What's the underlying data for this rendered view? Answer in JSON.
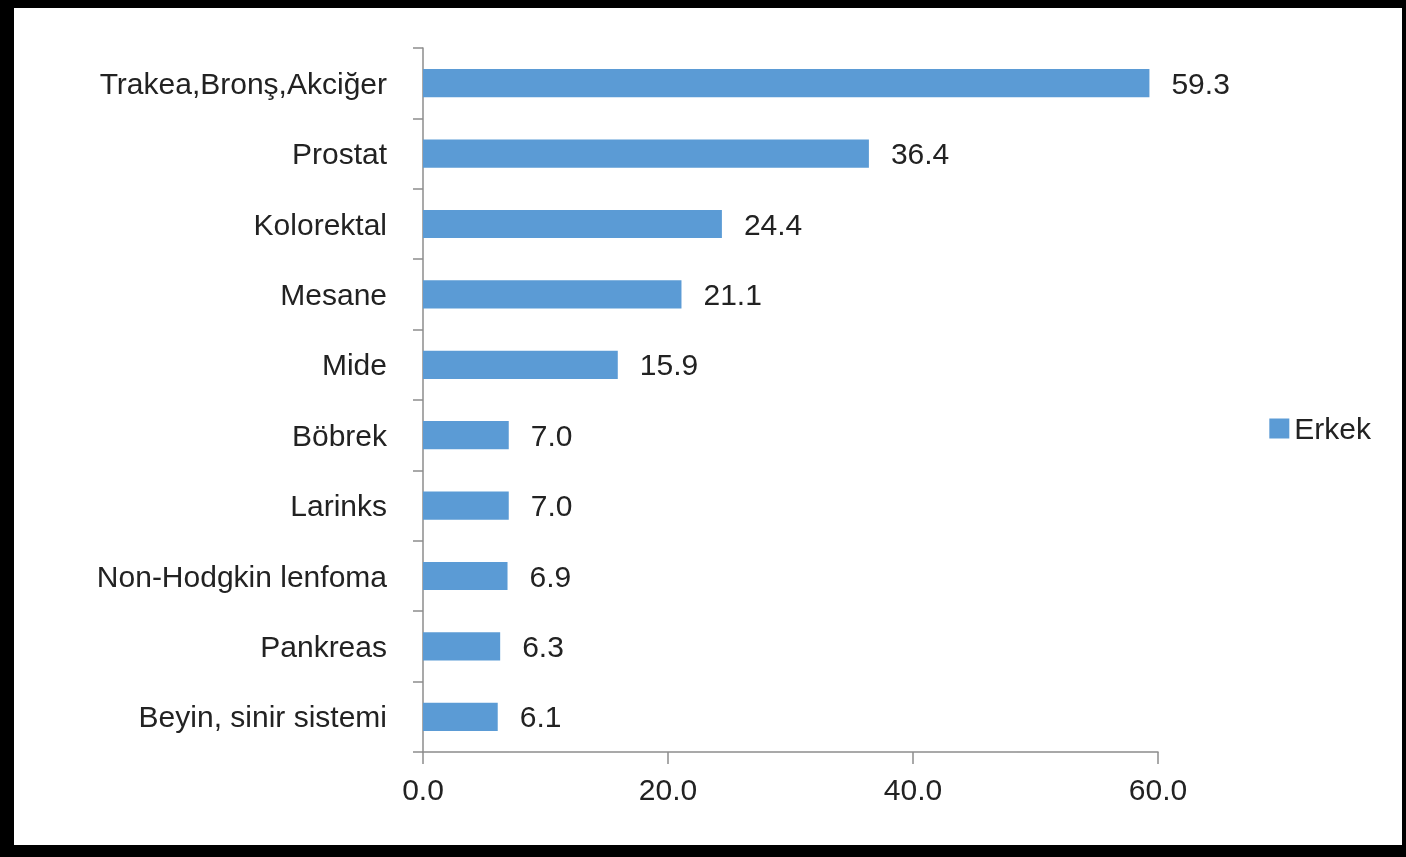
{
  "chart_data": {
    "type": "bar",
    "orientation": "horizontal",
    "categories": [
      "Trakea,Bronş,Akciğer",
      "Prostat",
      "Kolorektal",
      "Mesane",
      "Mide",
      "Böbrek",
      "Larinks",
      "Non-Hodgkin lenfoma",
      "Pankreas",
      "Beyin, sinir sistemi"
    ],
    "series": [
      {
        "name": "Erkek",
        "color": "#5b9bd5",
        "values": [
          59.3,
          36.4,
          24.4,
          21.1,
          15.9,
          7.0,
          7.0,
          6.9,
          6.3,
          6.1
        ],
        "value_labels": [
          "59.3",
          "36.4",
          "24.4",
          "21.1",
          "15.9",
          "7.0",
          "7.0",
          "6.9",
          "6.3",
          "6.1"
        ]
      }
    ],
    "xlim": [
      0,
      60
    ],
    "xticks": [
      {
        "value": 0,
        "label": "0.0"
      },
      {
        "value": 20,
        "label": "20.0"
      },
      {
        "value": 40,
        "label": "40.0"
      },
      {
        "value": 60,
        "label": "60.0"
      }
    ],
    "grid": false,
    "legend": "right"
  }
}
